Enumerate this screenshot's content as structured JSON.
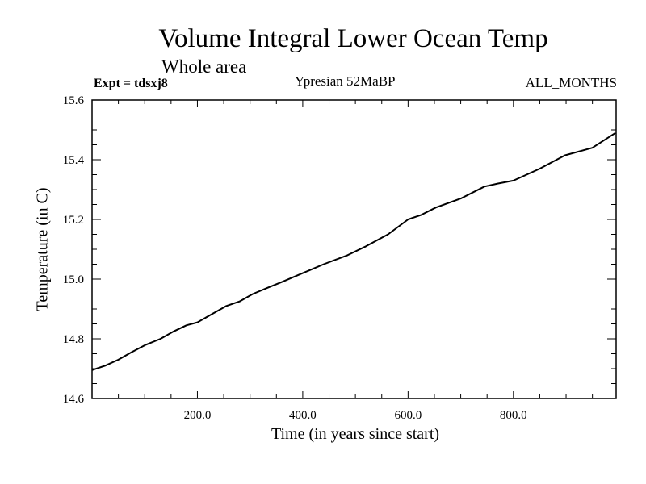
{
  "chart_data": {
    "type": "line",
    "title": "Volume Integral Lower Ocean Temp",
    "subtitle": "Whole area",
    "annotations": {
      "experiment": "Expt = tdsxj8",
      "period": "Ypresian  52MaBP",
      "months": "ALL_MONTHS"
    },
    "xlabel": "Time (in years since start)",
    "ylabel": "Temperature (in C)",
    "xlim": [
      0,
      995
    ],
    "ylim": [
      14.6,
      15.6
    ],
    "x_ticks": [
      200,
      400,
      600,
      800
    ],
    "x_tick_labels": [
      "200.0",
      "400.0",
      "600.0",
      "800.0"
    ],
    "x_minor_step": 50,
    "y_ticks": [
      14.6,
      14.8,
      15.0,
      15.2,
      15.4,
      15.6
    ],
    "y_tick_labels": [
      "14.6",
      "14.8",
      "15.0",
      "15.2",
      "15.4",
      "15.6"
    ],
    "y_minor_step": 0.05,
    "grid": false,
    "legend": "none",
    "series": [
      {
        "name": "Volume Integral Lower Ocean Temp",
        "color": "#000000",
        "x": [
          0,
          25,
          50,
          75,
          102,
          130,
          155,
          179,
          200,
          230,
          255,
          280,
          305,
          332,
          360,
          400,
          440,
          485,
          520,
          562,
          600,
          625,
          653,
          700,
          745,
          770,
          800,
          850,
          898,
          950,
          994
        ],
        "values": [
          14.695,
          14.71,
          14.73,
          14.755,
          14.78,
          14.8,
          14.825,
          14.845,
          14.855,
          14.885,
          14.91,
          14.925,
          14.95,
          14.97,
          14.99,
          15.02,
          15.05,
          15.08,
          15.11,
          15.15,
          15.2,
          15.215,
          15.24,
          15.27,
          15.31,
          15.32,
          15.33,
          15.37,
          15.415,
          15.44,
          15.49
        ]
      }
    ]
  }
}
